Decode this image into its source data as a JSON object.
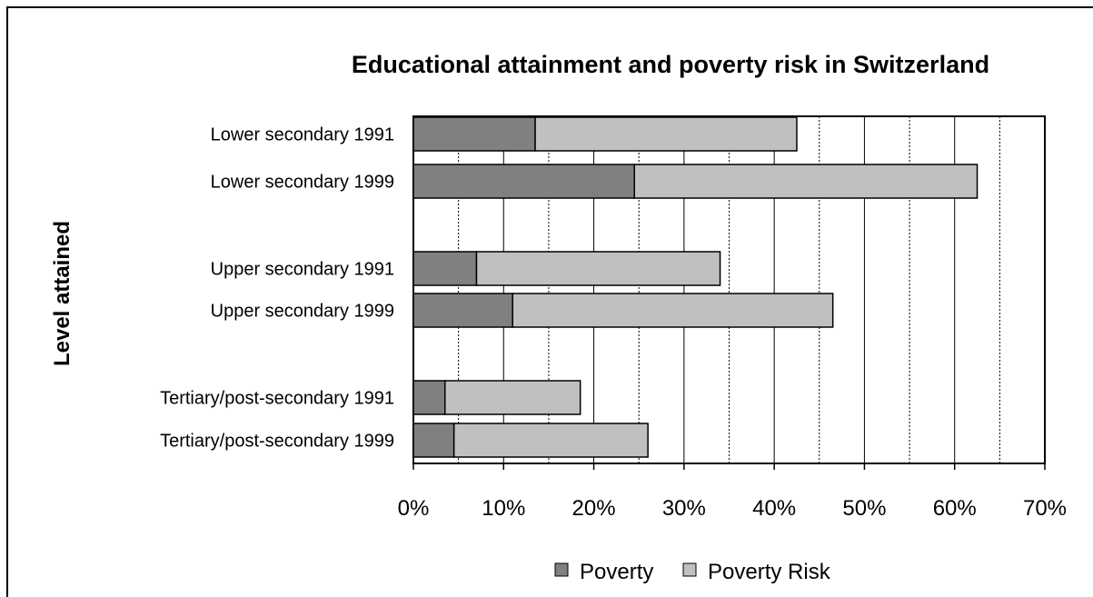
{
  "chart_data": {
    "type": "bar",
    "orientation": "horizontal",
    "stacked": true,
    "title": "Educational attainment and poverty risk in Switzerland",
    "xlabel": "",
    "ylabel": "Level attained",
    "xlim": [
      0,
      70
    ],
    "x_ticks": [
      "0%",
      "10%",
      "20%",
      "30%",
      "40%",
      "50%",
      "60%",
      "70%"
    ],
    "grid": "vertical every 5%",
    "legend_position": "bottom",
    "categories": [
      "Lower secondary 1991",
      "Lower secondary 1999",
      "Upper secondary 1991",
      "Upper secondary 1999",
      "Tertiary/post-secondary 1991",
      "Tertiary/post-secondary 1999"
    ],
    "series": [
      {
        "name": "Poverty",
        "color": "#808080",
        "values": [
          13.5,
          24.5,
          7,
          11,
          3.5,
          4.5
        ]
      },
      {
        "name": "Poverty Risk",
        "color": "#c0c0c0",
        "values": [
          29,
          38,
          27,
          35.5,
          15,
          21.5
        ]
      }
    ]
  }
}
